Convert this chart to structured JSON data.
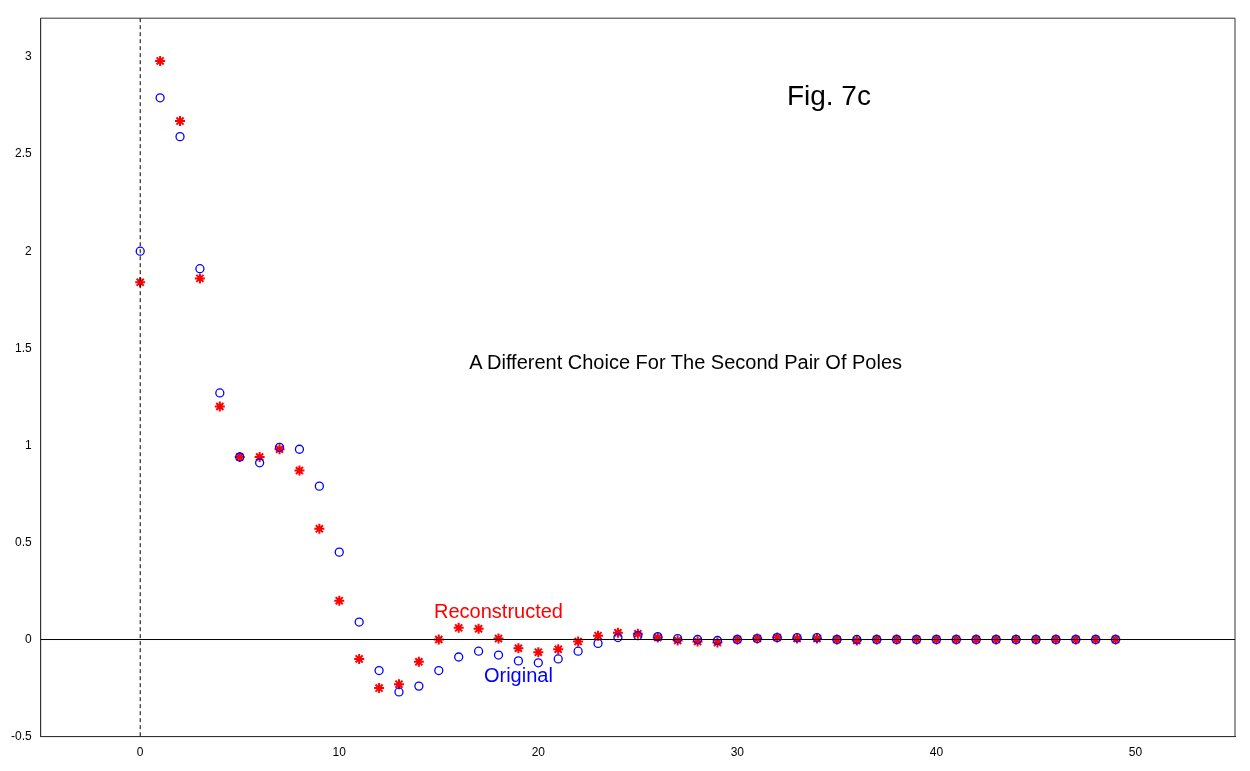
{
  "chart_data": {
    "type": "scatter",
    "annotations": [
      "Fig. 7c",
      "A Different Choice For The Second Pair Of Poles"
    ],
    "x": [
      0,
      1,
      2,
      3,
      4,
      5,
      6,
      7,
      8,
      9,
      10,
      11,
      12,
      13,
      14,
      15,
      16,
      17,
      18,
      19,
      20,
      21,
      22,
      23,
      24,
      25,
      26,
      27,
      28,
      29,
      30,
      31,
      32,
      33,
      34,
      35,
      36,
      37,
      38,
      39,
      40,
      41,
      42,
      43,
      44,
      45,
      46,
      47,
      48,
      49
    ],
    "series": [
      {
        "name": "Original",
        "color": "#0000ff",
        "marker": "circle",
        "values": [
          2.0,
          2.79,
          2.59,
          1.91,
          1.27,
          0.94,
          0.91,
          0.99,
          0.98,
          0.79,
          0.45,
          0.09,
          -0.16,
          -0.27,
          -0.24,
          -0.16,
          -0.09,
          -0.06,
          -0.08,
          -0.11,
          -0.12,
          -0.1,
          -0.06,
          -0.02,
          0.01,
          0.02,
          0.015,
          0.005,
          0,
          -0.005,
          0,
          0.005,
          0.01,
          0.01,
          0.01,
          0,
          0,
          0,
          0,
          0,
          0,
          0,
          0,
          0,
          0,
          0,
          0,
          0,
          0,
          0
        ]
      },
      {
        "name": "Reconstructed",
        "color": "#ff0000",
        "marker": "cross",
        "values": [
          1.84,
          2.98,
          2.67,
          1.86,
          1.2,
          0.94,
          0.94,
          0.98,
          0.87,
          0.57,
          0.2,
          -0.1,
          -0.25,
          -0.23,
          -0.115,
          0,
          0.06,
          0.055,
          0.005,
          -0.045,
          -0.065,
          -0.05,
          -0.01,
          0.02,
          0.035,
          0.03,
          0.01,
          -0.005,
          -0.01,
          -0.015,
          0,
          0.005,
          0.01,
          0.005,
          0.005,
          0,
          -0.005,
          0,
          0,
          0,
          0,
          0,
          0,
          0,
          0,
          0,
          0,
          0,
          0,
          0
        ]
      }
    ],
    "xlim": [
      -5,
      55
    ],
    "xticks": [
      0,
      10,
      20,
      30,
      40,
      50
    ],
    "ylim": [
      -0.5,
      3.2
    ],
    "yticks": [
      -0.5,
      0,
      0.5,
      1,
      1.5,
      2,
      2.5,
      3
    ],
    "ref_lines": [
      {
        "axis": "x",
        "value": 0,
        "line_style": "dashed",
        "color": "#000000"
      },
      {
        "axis": "y",
        "value": 0,
        "line_style": "solid",
        "color": "#000000"
      }
    ],
    "grid": false,
    "legend": false
  }
}
